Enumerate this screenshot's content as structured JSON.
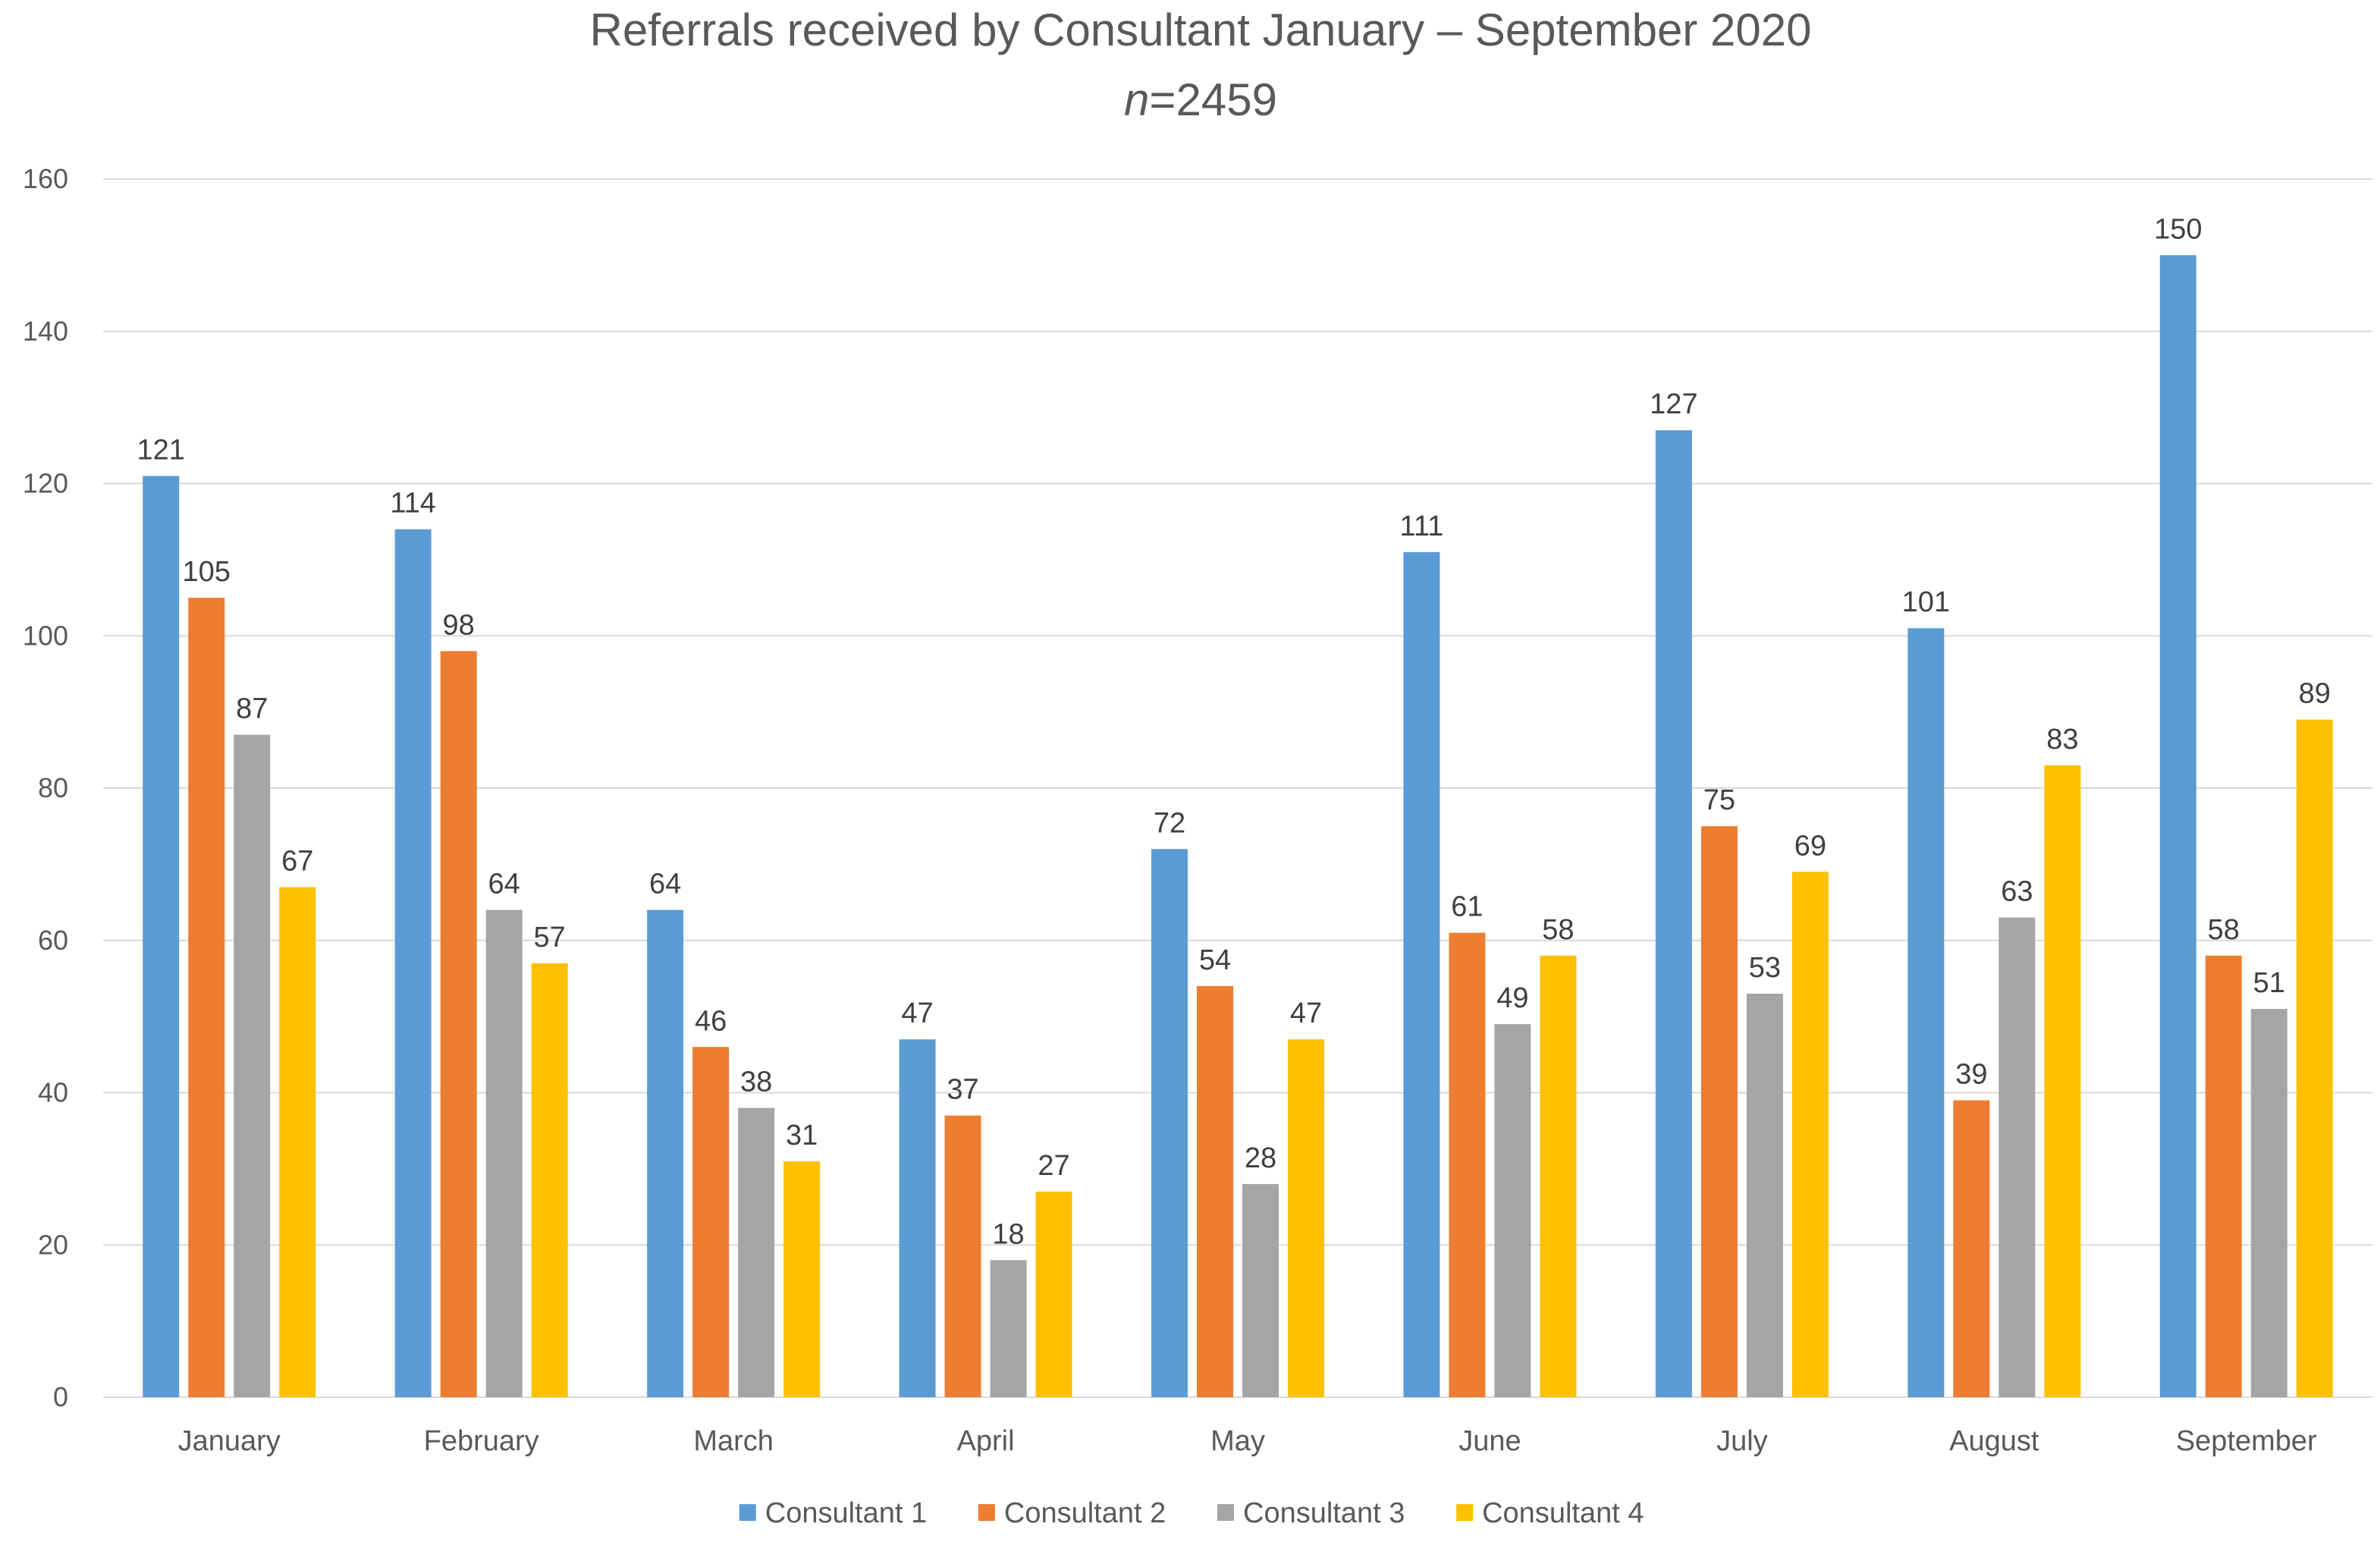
{
  "chart_data": {
    "type": "bar",
    "title": "Referrals received by Consultant January – September 2020",
    "subtitle_italic": "n",
    "subtitle_rest": "=2459",
    "xlabel": "",
    "ylabel": "",
    "ylim": [
      0,
      160
    ],
    "yticks": [
      "0",
      "20",
      "40",
      "60",
      "80",
      "100",
      "120",
      "140",
      "160"
    ],
    "grid": true,
    "legend_position": "bottom",
    "categories": [
      "January",
      "February",
      "March",
      "April",
      "May",
      "June",
      "July",
      "August",
      "September"
    ],
    "series": [
      {
        "name": "Consultant 1",
        "color": "#5B9BD5",
        "values": [
          121,
          114,
          64,
          47,
          72,
          111,
          127,
          101,
          150
        ]
      },
      {
        "name": "Consultant 2",
        "color": "#ED7D31",
        "values": [
          105,
          98,
          46,
          37,
          54,
          61,
          75,
          39,
          58
        ]
      },
      {
        "name": "Consultant 3",
        "color": "#A5A5A5",
        "values": [
          87,
          64,
          38,
          18,
          28,
          49,
          53,
          63,
          51
        ]
      },
      {
        "name": "Consultant 4",
        "color": "#FFC000",
        "values": [
          67,
          57,
          31,
          27,
          47,
          58,
          69,
          83,
          89
        ]
      }
    ]
  },
  "colors": {
    "gridline": "#D9D9D9",
    "axis_text": "#595959",
    "data_label": "#404040"
  }
}
